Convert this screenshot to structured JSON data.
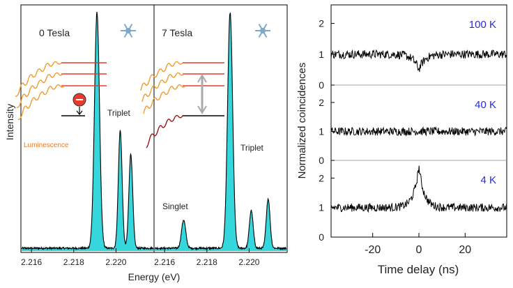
{
  "chart_data": [
    {
      "type": "area",
      "panel": "left",
      "xlabel": "Energy (eV)",
      "ylabel": "Intensity",
      "fill_color": "#35d6dc",
      "line_color": "#000000",
      "subpanels": [
        {
          "field_label": "0 Tesla",
          "xlim": [
            2.2155,
            2.2218
          ],
          "xticks": [
            "2.216",
            "2.218",
            "2.220"
          ],
          "xtick_values": [
            2.216,
            2.218,
            2.22
          ],
          "ylim": [
            0,
            1
          ],
          "peaks": [
            {
              "x": 2.2191,
              "height": 1.0,
              "width": 0.00012
            },
            {
              "x": 2.2202,
              "height": 0.5,
              "width": 9e-05
            },
            {
              "x": 2.2207,
              "height": 0.4,
              "width": 9e-05
            }
          ],
          "peak_label": "Triplet",
          "inset_label": "Luminescence"
        },
        {
          "field_label": "7 Tesla",
          "xlim": [
            2.2155,
            2.2218
          ],
          "xticks": [
            "2.216",
            "2.218",
            "2.220"
          ],
          "xtick_values": [
            2.216,
            2.218,
            2.22
          ],
          "ylim": [
            0,
            1
          ],
          "peaks": [
            {
              "x": 2.2169,
              "height": 0.12,
              "width": 0.0001
            },
            {
              "x": 2.2191,
              "height": 1.0,
              "width": 0.00012
            },
            {
              "x": 2.2201,
              "height": 0.16,
              "width": 9e-05
            },
            {
              "x": 2.2209,
              "height": 0.21,
              "width": 9e-05
            }
          ],
          "peak_labels": [
            "Singlet",
            "Triplet"
          ]
        }
      ]
    },
    {
      "type": "line",
      "panel": "right",
      "xlabel": "Time delay (ns)",
      "ylabel": "Normalized coincidences",
      "xlim": [
        -38,
        38
      ],
      "xticks": [
        -20,
        0,
        20
      ],
      "label_color": "#2a2ad8",
      "series": [
        {
          "name": "100 K",
          "baseline": 1,
          "dip_depth": 0.5,
          "dip_width_ns": 2.5,
          "ylim": [
            0,
            2.6
          ],
          "yticks": [
            0,
            1,
            2
          ]
        },
        {
          "name": "40 K",
          "baseline": 1,
          "dip_depth": 0.0,
          "dip_width_ns": 2.5,
          "ylim": [
            0,
            2.6
          ],
          "yticks": [
            0,
            1,
            2
          ]
        },
        {
          "name": "4 K",
          "baseline": 1,
          "dip_depth": -1.4,
          "dip_width_ns": 2.2,
          "ylim": [
            0,
            2.6
          ],
          "yticks": [
            0,
            1,
            2
          ]
        }
      ]
    }
  ]
}
